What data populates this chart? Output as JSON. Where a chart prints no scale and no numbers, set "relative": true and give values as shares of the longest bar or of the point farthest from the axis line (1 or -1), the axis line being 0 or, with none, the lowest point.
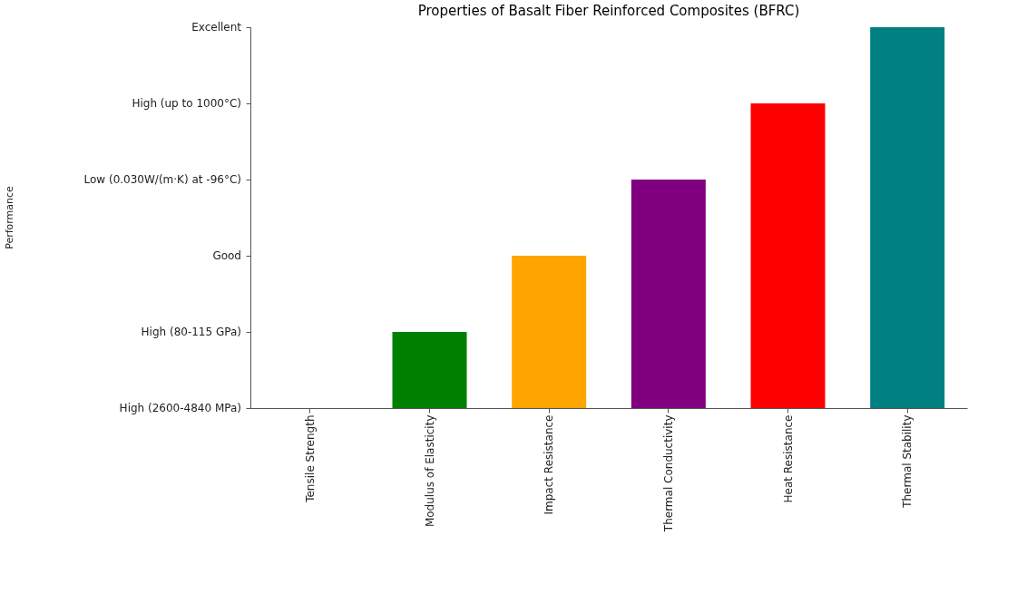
{
  "chart_data": {
    "type": "bar",
    "title": "Properties of Basalt Fiber Reinforced Composites (BFRC)",
    "categories": [
      "Tensile Strength",
      "Modulus of Elasticity",
      "Impact Resistance",
      "Thermal Conductivity",
      "Heat Resistance",
      "Thermal Stability"
    ],
    "values": [
      0,
      0.2,
      0.4,
      0.6,
      0.8,
      1
    ],
    "colors": [
      "#1f77b4",
      "#008000",
      "#ffa500",
      "#800080",
      "#ff0000",
      "#008080"
    ],
    "relative": true,
    "annotations": [
      "High (2600-4840 MPa)",
      "High (80-115 GPa)",
      "Good",
      "Low (0.030W/(m·K) at -96°C)",
      "High (up to 1000°C)",
      "Excellent",
      "Performance"
    ],
    "grid": false
  }
}
